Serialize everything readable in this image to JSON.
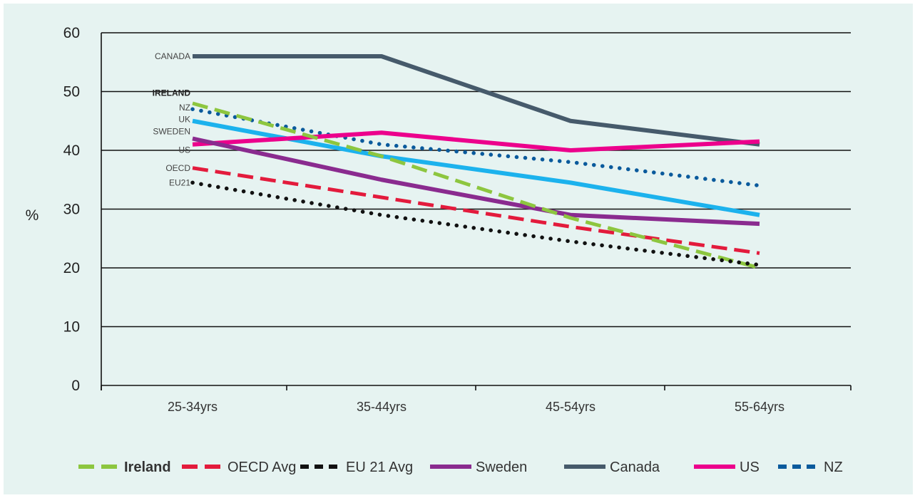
{
  "chart_data": {
    "type": "line",
    "title": "",
    "xlabel": "",
    "ylabel": "%",
    "ylim": [
      0,
      60
    ],
    "yticks": [
      0,
      10,
      20,
      30,
      40,
      50,
      60
    ],
    "categories": [
      "25-34yrs",
      "35-44yrs",
      "45-54yrs",
      "55-64yrs"
    ],
    "grid": "horizontal",
    "legend_position": "bottom",
    "series": [
      {
        "name": "Ireland",
        "line_label": "IRELAND",
        "values": [
          48,
          39,
          28.5,
          20
        ],
        "color": "#8dc63f",
        "style": "dashed",
        "legend_bold": true
      },
      {
        "name": "OECD Avg",
        "line_label": "OECD",
        "values": [
          37,
          32,
          27,
          22.5
        ],
        "color": "#e31b3c",
        "style": "dashed"
      },
      {
        "name": "EU 21 Avg",
        "line_label": "EU21",
        "values": [
          34.5,
          29,
          24.5,
          20.5
        ],
        "color": "#111111",
        "style": "dotted"
      },
      {
        "name": "Sweden",
        "line_label": "SWEDEN",
        "values": [
          42,
          35,
          29,
          27.5
        ],
        "color": "#8a2b8f",
        "style": "solid"
      },
      {
        "name": "Canada",
        "line_label": "CANADA",
        "values": [
          56,
          56,
          45,
          41
        ],
        "color": "#465a6b",
        "style": "solid"
      },
      {
        "name": "US",
        "line_label": "US",
        "values": [
          41,
          43,
          40,
          41.5
        ],
        "color": "#ec008c",
        "style": "solid"
      },
      {
        "name": "NZ",
        "line_label": "NZ",
        "values": [
          47,
          41,
          38,
          34
        ],
        "color": "#0a5a9c",
        "style": "dotted"
      },
      {
        "name": "",
        "line_label": "UK",
        "values": [
          45,
          39,
          34.5,
          29
        ],
        "color": "#1cb2ed",
        "style": "solid"
      }
    ]
  }
}
